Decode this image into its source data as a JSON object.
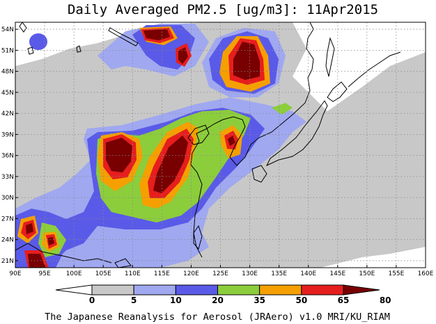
{
  "title": "Daily Averaged PM2.5 [ug/m3]: 11Apr2015",
  "credit": "The Japanese Reanalysis for Aerosol (JRAero) v1.0 MRI/KU_RIAM",
  "lon_ticks": [
    "90E",
    "95E",
    "100E",
    "105E",
    "110E",
    "115E",
    "120E",
    "125E",
    "130E",
    "135E",
    "140E",
    "145E",
    "150E",
    "155E",
    "160E"
  ],
  "lat_ticks": [
    "21N",
    "24N",
    "27N",
    "30N",
    "33N",
    "36N",
    "39N",
    "42N",
    "45N",
    "48N",
    "51N",
    "54N"
  ],
  "colorbar": {
    "labels": [
      "0",
      "5",
      "10",
      "20",
      "35",
      "50",
      "65",
      "80"
    ],
    "colors": [
      "#ffffff",
      "#c8c8c8",
      "#a0a8f0",
      "#5a5ae8",
      "#8ccd3c",
      "#f5a000",
      "#e61e1e",
      "#780000"
    ]
  },
  "chart_data": {
    "type": "heatmap",
    "title": "Daily Averaged PM2.5 [ug/m3]: 11Apr2015",
    "variable": "PM2.5",
    "units": "ug/m3",
    "date": "11Apr2015",
    "x_range_lon": [
      90,
      160
    ],
    "y_range_lat": [
      20,
      55
    ],
    "levels": [
      0,
      5,
      10,
      20,
      35,
      50,
      65,
      80
    ],
    "grid": true
  }
}
